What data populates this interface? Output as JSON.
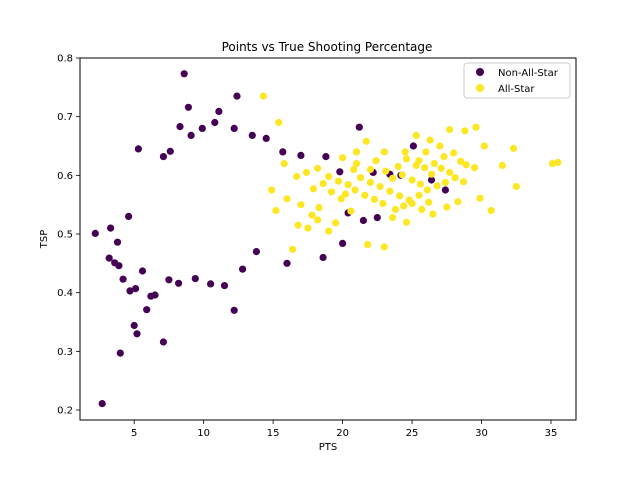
{
  "chart_data": {
    "type": "scatter",
    "title": "Points vs True Shooting Percentage",
    "xlabel": "PTS",
    "ylabel": "TSP",
    "xlim": [
      1.1,
      36.8
    ],
    "ylim": [
      0.183,
      0.8
    ],
    "x_ticks": [
      5,
      10,
      15,
      20,
      25,
      30,
      35
    ],
    "y_ticks": [
      0.2,
      0.3,
      0.4,
      0.5,
      0.6,
      0.7,
      0.8
    ],
    "grid": false,
    "legend_position": "top-right",
    "series": [
      {
        "name": "Non-All-Star",
        "color": "#440154",
        "points": [
          [
            2.7,
            0.211
          ],
          [
            4.0,
            0.297
          ],
          [
            7.1,
            0.316
          ],
          [
            2.2,
            0.501
          ],
          [
            5.0,
            0.344
          ],
          [
            5.2,
            0.33
          ],
          [
            8.6,
            0.773
          ],
          [
            8.9,
            0.716
          ],
          [
            11.1,
            0.709
          ],
          [
            12.4,
            0.735
          ],
          [
            12.2,
            0.37
          ],
          [
            6.2,
            0.394
          ],
          [
            5.9,
            0.371
          ],
          [
            3.2,
            0.459
          ],
          [
            3.6,
            0.451
          ],
          [
            3.9,
            0.446
          ],
          [
            4.2,
            0.423
          ],
          [
            4.7,
            0.403
          ],
          [
            5.1,
            0.407
          ],
          [
            5.6,
            0.437
          ],
          [
            6.5,
            0.396
          ],
          [
            7.5,
            0.422
          ],
          [
            8.2,
            0.416
          ],
          [
            9.4,
            0.424
          ],
          [
            10.5,
            0.415
          ],
          [
            11.5,
            0.412
          ],
          [
            12.8,
            0.44
          ],
          [
            13.8,
            0.47
          ],
          [
            16.0,
            0.45
          ],
          [
            18.6,
            0.46
          ],
          [
            3.3,
            0.51
          ],
          [
            3.8,
            0.486
          ],
          [
            4.6,
            0.53
          ],
          [
            5.3,
            0.645
          ],
          [
            7.1,
            0.632
          ],
          [
            7.6,
            0.641
          ],
          [
            8.3,
            0.683
          ],
          [
            9.1,
            0.668
          ],
          [
            9.9,
            0.68
          ],
          [
            10.8,
            0.69
          ],
          [
            12.2,
            0.68
          ],
          [
            13.5,
            0.668
          ],
          [
            14.5,
            0.663
          ],
          [
            15.7,
            0.64
          ],
          [
            17.0,
            0.634
          ],
          [
            18.8,
            0.632
          ],
          [
            19.8,
            0.606
          ],
          [
            21.2,
            0.682
          ],
          [
            22.2,
            0.605
          ],
          [
            23.4,
            0.602
          ],
          [
            24.2,
            0.6
          ],
          [
            25.1,
            0.65
          ],
          [
            26.4,
            0.592
          ],
          [
            27.4,
            0.575
          ],
          [
            22.5,
            0.528
          ],
          [
            21.5,
            0.523
          ],
          [
            20.4,
            0.536
          ],
          [
            20.0,
            0.484
          ]
        ]
      },
      {
        "name": "All-Star",
        "color": "#fde725",
        "points": [
          [
            14.3,
            0.735
          ],
          [
            15.4,
            0.69
          ],
          [
            21.7,
            0.658
          ],
          [
            25.3,
            0.668
          ],
          [
            26.3,
            0.66
          ],
          [
            27.7,
            0.678
          ],
          [
            28.8,
            0.676
          ],
          [
            29.6,
            0.682
          ],
          [
            30.2,
            0.65
          ],
          [
            32.3,
            0.646
          ],
          [
            31.5,
            0.617
          ],
          [
            35.1,
            0.62
          ],
          [
            35.5,
            0.622
          ],
          [
            32.5,
            0.581
          ],
          [
            30.7,
            0.54
          ],
          [
            29.9,
            0.561
          ],
          [
            28.3,
            0.555
          ],
          [
            27.5,
            0.546
          ],
          [
            26.5,
            0.534
          ],
          [
            24.6,
            0.52
          ],
          [
            23.6,
            0.528
          ],
          [
            23.0,
            0.478
          ],
          [
            21.8,
            0.482
          ],
          [
            20.6,
            0.539
          ],
          [
            19.9,
            0.56
          ],
          [
            19.2,
            0.572
          ],
          [
            18.6,
            0.586
          ],
          [
            17.9,
            0.577
          ],
          [
            17.0,
            0.55
          ],
          [
            16.4,
            0.474
          ],
          [
            17.8,
            0.532
          ],
          [
            18.2,
            0.524
          ],
          [
            19.5,
            0.519
          ],
          [
            20.8,
            0.61
          ],
          [
            21.0,
            0.62
          ],
          [
            22.4,
            0.625
          ],
          [
            23.1,
            0.607
          ],
          [
            24.0,
            0.615
          ],
          [
            24.6,
            0.628
          ],
          [
            25.3,
            0.617
          ],
          [
            25.9,
            0.613
          ],
          [
            26.4,
            0.602
          ],
          [
            27.1,
            0.612
          ],
          [
            27.7,
            0.605
          ],
          [
            28.5,
            0.624
          ],
          [
            28.9,
            0.618
          ],
          [
            29.5,
            0.613
          ],
          [
            21.3,
            0.596
          ],
          [
            22.0,
            0.588
          ],
          [
            22.7,
            0.581
          ],
          [
            23.4,
            0.573
          ],
          [
            24.1,
            0.565
          ],
          [
            24.8,
            0.558
          ],
          [
            25.5,
            0.566
          ],
          [
            26.1,
            0.575
          ],
          [
            26.8,
            0.582
          ],
          [
            27.4,
            0.588
          ],
          [
            28.1,
            0.596
          ],
          [
            28.7,
            0.589
          ],
          [
            23.8,
            0.542
          ],
          [
            24.4,
            0.548
          ],
          [
            25.0,
            0.552
          ],
          [
            25.7,
            0.542
          ],
          [
            26.2,
            0.554
          ],
          [
            20.2,
            0.568
          ],
          [
            20.9,
            0.575
          ],
          [
            21.6,
            0.566
          ],
          [
            22.3,
            0.559
          ],
          [
            22.9,
            0.552
          ],
          [
            23.6,
            0.595
          ],
          [
            24.3,
            0.601
          ],
          [
            25.0,
            0.592
          ],
          [
            25.6,
            0.585
          ],
          [
            26.6,
            0.62
          ],
          [
            27.3,
            0.632
          ],
          [
            28.0,
            0.638
          ],
          [
            15.8,
            0.62
          ],
          [
            16.7,
            0.598
          ],
          [
            17.4,
            0.605
          ],
          [
            18.2,
            0.612
          ],
          [
            19.0,
            0.598
          ],
          [
            19.7,
            0.59
          ],
          [
            20.4,
            0.584
          ],
          [
            14.9,
            0.575
          ],
          [
            15.2,
            0.54
          ],
          [
            16.0,
            0.56
          ],
          [
            16.8,
            0.515
          ],
          [
            17.5,
            0.51
          ],
          [
            18.3,
            0.545
          ],
          [
            19.0,
            0.505
          ],
          [
            20.0,
            0.63
          ],
          [
            21.0,
            0.64
          ],
          [
            26.0,
            0.64
          ],
          [
            27.0,
            0.65
          ],
          [
            24.5,
            0.64
          ],
          [
            25.5,
            0.625
          ],
          [
            23.0,
            0.64
          ],
          [
            22.0,
            0.61
          ]
        ]
      }
    ]
  }
}
